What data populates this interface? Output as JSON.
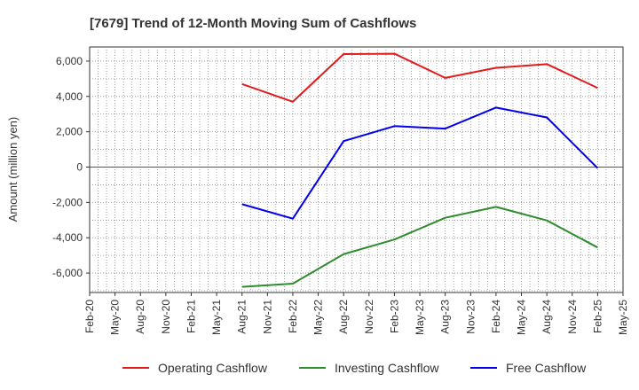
{
  "chart_data": {
    "type": "line",
    "title": "[7679]  Trend of 12-Month Moving Sum of Cashflows",
    "xlabel": "",
    "ylabel": "Amount (million yen)",
    "categories": [
      "Feb-20",
      "May-20",
      "Aug-20",
      "Nov-20",
      "Feb-21",
      "May-21",
      "Aug-21",
      "Nov-21",
      "Feb-22",
      "May-22",
      "Aug-22",
      "Nov-22",
      "Feb-23",
      "May-23",
      "Aug-23",
      "Nov-23",
      "Feb-24",
      "May-24",
      "Aug-24",
      "Nov-24",
      "Feb-25",
      "May-25"
    ],
    "ylim": [
      -7100,
      6800
    ],
    "yticks": [
      -6000,
      -4000,
      -2000,
      0,
      2000,
      4000,
      6000
    ],
    "ytick_labels": [
      "-6,000",
      "-4,000",
      "-2,000",
      "0",
      "2,000",
      "4,000",
      "6,000"
    ],
    "grid": true,
    "legend_position": "bottom",
    "series": [
      {
        "name": "Operating Cashflow",
        "color": "#e31a1c",
        "points": [
          [
            "Aug-21",
            4700
          ],
          [
            "Feb-22",
            3700
          ],
          [
            "Aug-22",
            6400
          ],
          [
            "Feb-23",
            6420
          ],
          [
            "Aug-23",
            5050
          ],
          [
            "Feb-24",
            5620
          ],
          [
            "Aug-24",
            5830
          ],
          [
            "Feb-25",
            4480
          ]
        ]
      },
      {
        "name": "Investing Cashflow",
        "color": "#2e8b2e",
        "points": [
          [
            "Aug-21",
            -6780
          ],
          [
            "Feb-22",
            -6600
          ],
          [
            "Aug-22",
            -4930
          ],
          [
            "Feb-23",
            -4100
          ],
          [
            "Aug-23",
            -2870
          ],
          [
            "Feb-24",
            -2250
          ],
          [
            "Aug-24",
            -3020
          ],
          [
            "Feb-25",
            -4550
          ]
        ]
      },
      {
        "name": "Free Cashflow",
        "color": "#0000ee",
        "points": [
          [
            "Aug-21",
            -2100
          ],
          [
            "Feb-22",
            -2920
          ],
          [
            "Aug-22",
            1470
          ],
          [
            "Feb-23",
            2320
          ],
          [
            "Aug-23",
            2180
          ],
          [
            "Feb-24",
            3370
          ],
          [
            "Aug-24",
            2810
          ],
          [
            "Feb-25",
            -60
          ]
        ]
      }
    ]
  }
}
